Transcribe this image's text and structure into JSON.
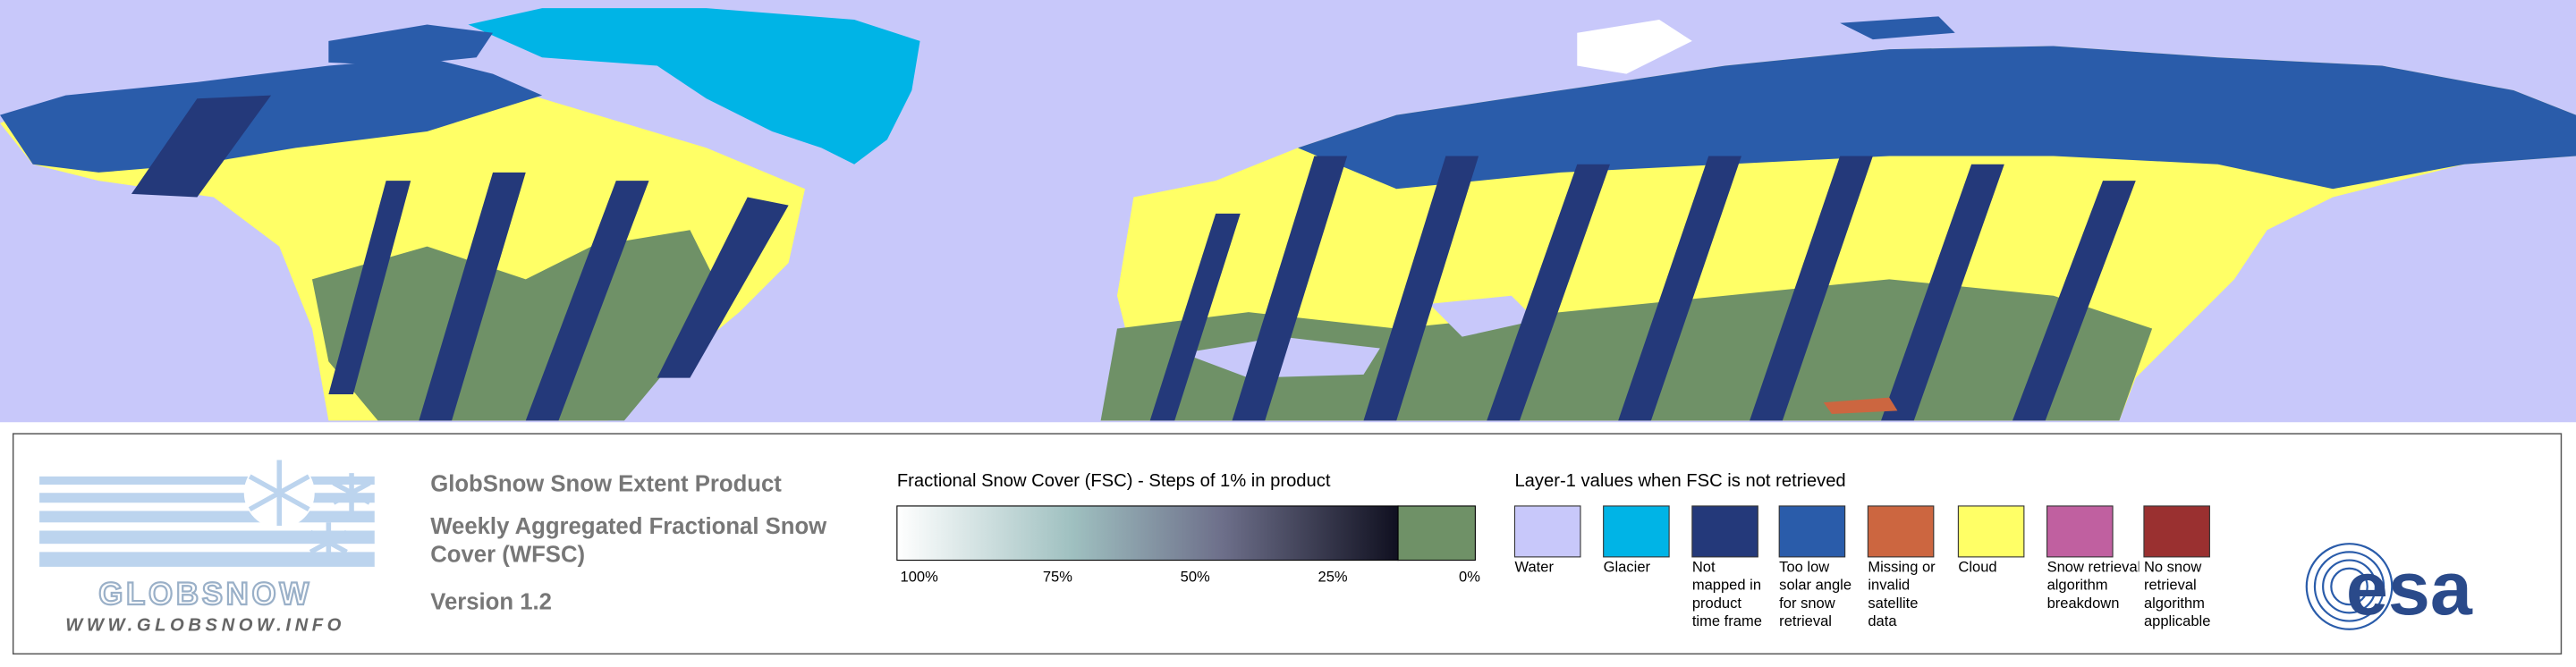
{
  "logo": {
    "name": "GLOBSNOW",
    "url": "WWW.GLOBSNOW.INFO"
  },
  "product": {
    "title": "GlobSnow Snow Extent Product",
    "subtitle": "Weekly Aggregated Fractional Snow Cover (WFSC)",
    "version": "Version 1.2"
  },
  "fsc_legend": {
    "title": "Fractional Snow Cover (FSC) - Steps of 1% in product",
    "ticks": [
      "100%",
      "75%",
      "50%",
      "25%",
      "0%"
    ]
  },
  "layer1_legend": {
    "title": "Layer-1 values when FSC is not retrieved",
    "items": [
      {
        "label": "Water",
        "color": "#c8c8fa"
      },
      {
        "label": "Glacier",
        "color": "#00b4e6"
      },
      {
        "label": "Not mapped in product time frame",
        "color": "#24397a"
      },
      {
        "label": "Too low solar angle for snow retrieval",
        "color": "#2a5caa"
      },
      {
        "label": "Missing or invalid satellite data",
        "color": "#cc6640"
      },
      {
        "label": "Cloud",
        "color": "#ffff66"
      },
      {
        "label": "Snow retrieval algorithm breakdown",
        "color": "#c060a0"
      },
      {
        "label": "No snow retrieval algorithm applicable",
        "color": "#9a3030"
      }
    ]
  },
  "agency": "esa"
}
